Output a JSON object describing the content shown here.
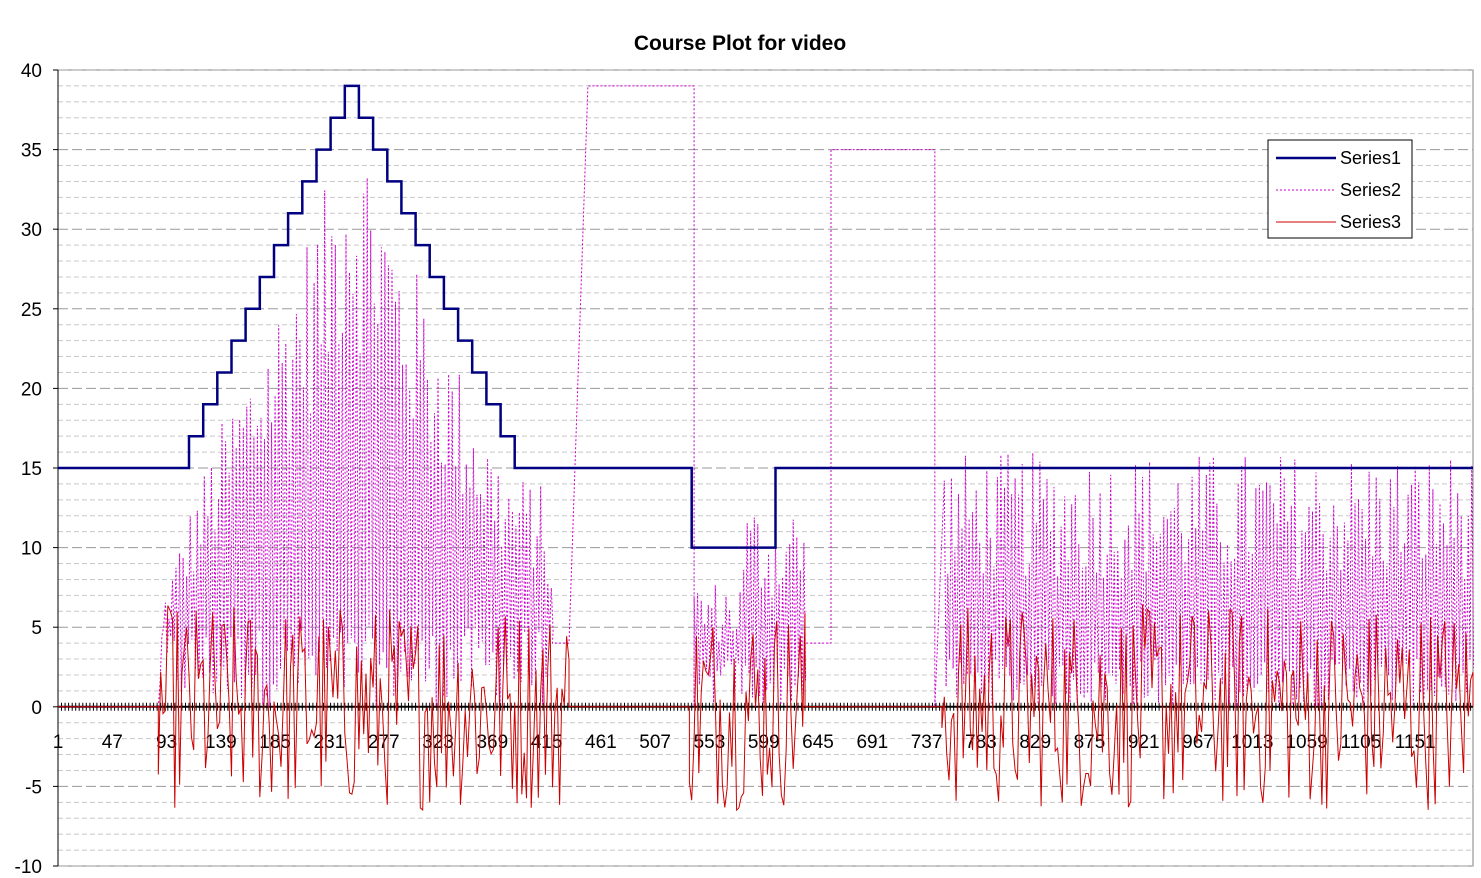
{
  "chart_data": {
    "type": "line",
    "title": "Course Plot for video",
    "xlabel": "",
    "ylabel": "",
    "ylim": [
      -10,
      40
    ],
    "yticks": [
      -10,
      -5,
      0,
      5,
      10,
      15,
      20,
      25,
      30,
      35,
      40
    ],
    "x_range": [
      1,
      1200
    ],
    "x_tick_labels": [
      "1",
      "47",
      "93",
      "139",
      "185",
      "231",
      "277",
      "323",
      "369",
      "415",
      "461",
      "507",
      "553",
      "599",
      "645",
      "691",
      "737",
      "783",
      "829",
      "875",
      "921",
      "967",
      "1013",
      "1059",
      "1105",
      "1151"
    ],
    "grid": "horizontal dashed",
    "legend_position": "top-right",
    "series": [
      {
        "name": "Series1",
        "color": "#000080",
        "style": "solid",
        "steps": [
          [
            1,
            15
          ],
          [
            112,
            17
          ],
          [
            124,
            19
          ],
          [
            136,
            21
          ],
          [
            148,
            23
          ],
          [
            160,
            25
          ],
          [
            172,
            27
          ],
          [
            184,
            29
          ],
          [
            196,
            31
          ],
          [
            208,
            33
          ],
          [
            220,
            35
          ],
          [
            232,
            37
          ],
          [
            244,
            39
          ],
          [
            256,
            37
          ],
          [
            268,
            35
          ],
          [
            280,
            33
          ],
          [
            292,
            31
          ],
          [
            304,
            29
          ],
          [
            316,
            27
          ],
          [
            328,
            25
          ],
          [
            340,
            23
          ],
          [
            352,
            21
          ],
          [
            364,
            19
          ],
          [
            376,
            17
          ],
          [
            388,
            15
          ],
          [
            538,
            10
          ],
          [
            609,
            15
          ],
          [
            1200,
            15
          ]
        ]
      },
      {
        "name": "Series2",
        "color": "#cc00cc",
        "style": "dotted",
        "envelope": [
          [
            86,
            0
          ],
          [
            90,
            7
          ],
          [
            110,
            12
          ],
          [
            140,
            18
          ],
          [
            170,
            23
          ],
          [
            200,
            28
          ],
          [
            230,
            33
          ],
          [
            245,
            38
          ],
          [
            265,
            36
          ],
          [
            290,
            30
          ],
          [
            320,
            25
          ],
          [
            350,
            20
          ],
          [
            380,
            15
          ],
          [
            410,
            14
          ],
          [
            420,
            10
          ]
        ],
        "blocks": [
          [
            420,
            434,
            4
          ],
          [
            450,
            540,
            39
          ],
          [
            584,
            634,
            9
          ],
          [
            656,
            744,
            35
          ],
          [
            750,
            1200,
            14
          ]
        ],
        "low_dip_region": [
          536,
          580,
          8
        ]
      },
      {
        "name": "Series3",
        "color": "#cc0000",
        "style": "solid",
        "active_ranges": [
          [
            86,
            434
          ],
          [
            536,
            634
          ],
          [
            750,
            1200
          ]
        ],
        "range": [
          -8,
          8
        ]
      }
    ]
  }
}
